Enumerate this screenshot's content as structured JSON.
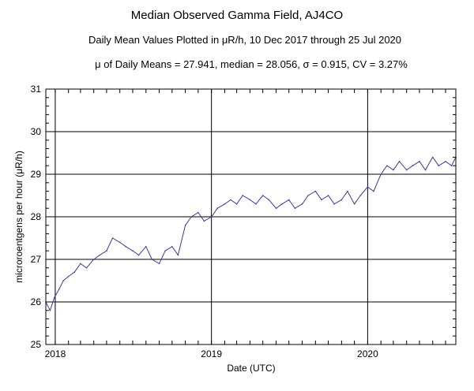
{
  "chart_data": {
    "type": "line",
    "title": "Median Observed Gamma Field, AJ4CO",
    "subtitle": "Daily Mean Values Plotted in μR/h, 10 Dec 2017 through 25 Jul 2020",
    "stats_line": "μ of Daily Means = 27.941,   median = 28.056,   σ = 0.915,   CV = 3.27%",
    "xlabel": "Date (UTC)",
    "ylabel": "microroentgens per hour (μR/h)",
    "x_tick_labels": [
      "2018",
      "2019",
      "2020"
    ],
    "x_ticks": [
      "2018-01-01",
      "2019-01-01",
      "2020-01-01"
    ],
    "xlim": [
      "2017-12-10",
      "2020-07-25"
    ],
    "ylim": [
      25,
      31
    ],
    "y_ticks": [
      25,
      26,
      27,
      28,
      29,
      30,
      31
    ],
    "grid": true,
    "line_color": "#3b3b9c",
    "series": [
      {
        "x": [
          "2017-12-10",
          "2017-12-20",
          "2017-12-30",
          "2018-01-10",
          "2018-01-20",
          "2018-02-01",
          "2018-02-15",
          "2018-03-01",
          "2018-03-15",
          "2018-04-01",
          "2018-04-15",
          "2018-05-01",
          "2018-05-15",
          "2018-06-01",
          "2018-06-15",
          "2018-07-01",
          "2018-07-15",
          "2018-08-01",
          "2018-08-15",
          "2018-09-01",
          "2018-09-15",
          "2018-10-01",
          "2018-10-15",
          "2018-11-01",
          "2018-11-15",
          "2018-12-01",
          "2018-12-15",
          "2019-01-01",
          "2019-01-15",
          "2019-02-01",
          "2019-02-15",
          "2019-03-01",
          "2019-03-15",
          "2019-04-01",
          "2019-04-15",
          "2019-05-01",
          "2019-05-15",
          "2019-06-01",
          "2019-06-15",
          "2019-07-01",
          "2019-07-15",
          "2019-08-01",
          "2019-08-15",
          "2019-09-01",
          "2019-09-15",
          "2019-10-01",
          "2019-10-15",
          "2019-11-01",
          "2019-11-15",
          "2019-12-01",
          "2019-12-15",
          "2020-01-01",
          "2020-01-15",
          "2020-02-01",
          "2020-02-15",
          "2020-03-01",
          "2020-03-15",
          "2020-04-01",
          "2020-04-15",
          "2020-05-01",
          "2020-05-15",
          "2020-06-01",
          "2020-06-15",
          "2020-07-01",
          "2020-07-15",
          "2020-07-25"
        ],
        "values": [
          26.0,
          25.8,
          26.1,
          26.3,
          26.5,
          26.6,
          26.7,
          26.9,
          26.8,
          27.0,
          27.1,
          27.2,
          27.5,
          27.4,
          27.3,
          27.2,
          27.1,
          27.3,
          27.0,
          26.9,
          27.2,
          27.3,
          27.1,
          27.8,
          28.0,
          28.1,
          27.9,
          28.0,
          28.2,
          28.3,
          28.4,
          28.3,
          28.5,
          28.4,
          28.3,
          28.5,
          28.4,
          28.2,
          28.3,
          28.4,
          28.2,
          28.3,
          28.5,
          28.6,
          28.4,
          28.5,
          28.3,
          28.4,
          28.6,
          28.3,
          28.5,
          28.7,
          28.6,
          29.0,
          29.2,
          29.1,
          29.3,
          29.1,
          29.2,
          29.3,
          29.1,
          29.4,
          29.2,
          29.3,
          29.2,
          29.4
        ]
      }
    ]
  }
}
